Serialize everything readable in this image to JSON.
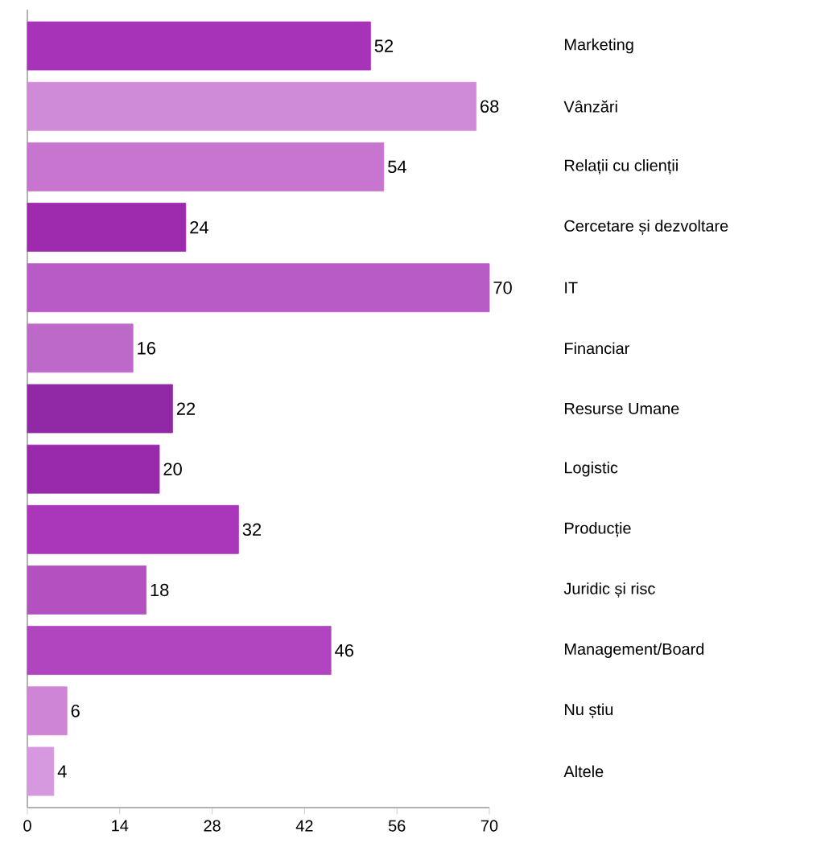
{
  "chart_data": {
    "type": "bar",
    "orientation": "horizontal",
    "categories": [
      "Marketing",
      "Vânzări",
      "Relații cu clienții",
      "Cercetare și dezvoltare",
      "IT",
      "Financiar",
      "Resurse Umane",
      "Logistic",
      "Producție",
      "Juridic și risc",
      "Management/Board",
      "Nu știu",
      "Altele"
    ],
    "values": [
      52,
      68,
      54,
      24,
      70,
      16,
      22,
      20,
      32,
      18,
      46,
      6,
      4
    ],
    "colors": [
      "#a733b8",
      "#d08bd8",
      "#c875cf",
      "#9e2aae",
      "#b95bc6",
      "#bd69c9",
      "#9128a6",
      "#982aab",
      "#aa37ba",
      "#b451c1",
      "#b045bf",
      "#cf85d6",
      "#d699e0"
    ],
    "xlim": [
      0,
      70
    ],
    "xticks": [
      0,
      14,
      28,
      42,
      56,
      70
    ],
    "data_labels": true,
    "grid": false
  }
}
